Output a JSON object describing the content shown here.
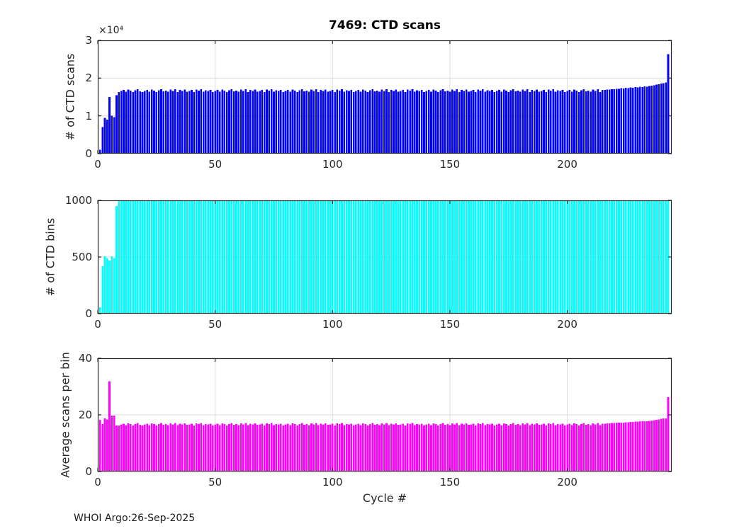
{
  "figure": {
    "title": "7469: CTD scans",
    "xlabel": "Cycle #",
    "footer": "WHOI Argo:26-Sep-2025",
    "background_color": "#ffffff",
    "axis_color": "#262626",
    "grid_color": "#dcdcdc"
  },
  "chart_data": [
    {
      "type": "bar",
      "title": "7469: CTD scans",
      "ylabel": "# of CTD scans",
      "y_exponent": "×10⁴",
      "bar_color": "#0000ff",
      "grid": "on",
      "xlim": [
        0,
        244.5
      ],
      "ylim": [
        0,
        30000
      ],
      "ytick_values": [
        0,
        10000,
        20000,
        30000
      ],
      "ytick_labels": [
        "0",
        "1",
        "2",
        "3"
      ],
      "xtick_values": [
        0,
        50,
        100,
        150,
        200
      ],
      "xtick_labels": [
        "0",
        "50",
        "100",
        "150",
        "200"
      ],
      "x_first_cycle": 1,
      "values": [
        1000,
        7000,
        9500,
        9000,
        15000,
        10000,
        9700,
        15500,
        16300,
        16600,
        16900,
        16400,
        17000,
        16700,
        16300,
        16800,
        17100,
        16500,
        16300,
        16600,
        16900,
        16400,
        17000,
        16700,
        16300,
        16800,
        17100,
        16500,
        16700,
        16400,
        16950,
        16600,
        17050,
        16350,
        16850,
        16600,
        17000,
        16450,
        16550,
        16850,
        16300,
        16950,
        16650,
        17100,
        16400,
        16800,
        16550,
        16900,
        16300,
        16600,
        16900,
        16400,
        17000,
        16700,
        16300,
        16800,
        17100,
        16500,
        16700,
        16400,
        16950,
        16600,
        17050,
        16350,
        16850,
        16600,
        17000,
        16450,
        16550,
        16850,
        16300,
        16950,
        16650,
        17100,
        16400,
        16800,
        16550,
        16900,
        16300,
        16600,
        16900,
        16400,
        17000,
        16700,
        16300,
        16800,
        17100,
        16500,
        16700,
        16400,
        16950,
        16600,
        17050,
        16350,
        16850,
        16600,
        17000,
        16450,
        16550,
        16850,
        16300,
        16950,
        16650,
        17100,
        16400,
        16800,
        16550,
        16900,
        16300,
        16600,
        16900,
        16400,
        17000,
        16700,
        16300,
        16800,
        17100,
        16500,
        16700,
        16400,
        16950,
        16600,
        17050,
        16350,
        16850,
        16600,
        17000,
        16450,
        16550,
        16850,
        16300,
        16950,
        16650,
        17100,
        16400,
        16800,
        16550,
        16900,
        16300,
        16600,
        16900,
        16400,
        17000,
        16700,
        16300,
        16800,
        17100,
        16500,
        16700,
        16400,
        16950,
        16600,
        17050,
        16350,
        16850,
        16600,
        17000,
        16450,
        16550,
        16850,
        16300,
        16950,
        16650,
        17100,
        16400,
        16800,
        16550,
        16900,
        16300,
        16600,
        16900,
        16400,
        17000,
        16700,
        16300,
        16800,
        17100,
        16500,
        16700,
        16400,
        16950,
        16600,
        17050,
        16350,
        16850,
        16600,
        17000,
        16450,
        16550,
        16850,
        16300,
        16950,
        16650,
        17100,
        16400,
        16800,
        16550,
        16900,
        16300,
        16600,
        16900,
        16400,
        17000,
        16700,
        16300,
        16800,
        17100,
        16500,
        16700,
        16400,
        16950,
        16600,
        17050,
        16350,
        16850,
        16900,
        17000,
        16950,
        17100,
        17050,
        17200,
        17150,
        17300,
        17250,
        17400,
        17350,
        17500,
        17450,
        17600,
        17550,
        17700,
        17650,
        17800,
        17750,
        17900,
        18000,
        18100,
        18250,
        18400,
        18550,
        18700,
        18800,
        26300
      ]
    },
    {
      "type": "bar",
      "ylabel": "# of CTD bins",
      "bar_color": "#00ffff",
      "grid": "on",
      "xlim": [
        0,
        244.5
      ],
      "ylim": [
        0,
        1000
      ],
      "ytick_values": [
        0,
        500,
        1000
      ],
      "ytick_labels": [
        "0",
        "500",
        "1000"
      ],
      "xtick_values": [
        0,
        50,
        100,
        150,
        200
      ],
      "xtick_labels": [
        "0",
        "50",
        "100",
        "150",
        "200"
      ],
      "x_first_cycle": 1,
      "values": [
        55,
        420,
        505,
        490,
        470,
        505,
        490,
        950,
        1000,
        1000,
        1000,
        1000,
        1000,
        1000,
        1000,
        1000,
        1000,
        1000,
        1000,
        1000,
        1000,
        1000,
        1000,
        1000,
        1000,
        1000,
        1000,
        1000,
        1000,
        1000,
        1000,
        1000,
        1000,
        1000,
        1000,
        1000,
        1000,
        1000,
        1000,
        1000,
        1000,
        1000,
        1000,
        1000,
        1000,
        1000,
        1000,
        1000,
        1000,
        1000,
        1000,
        1000,
        1000,
        1000,
        1000,
        1000,
        1000,
        1000,
        1000,
        1000,
        1000,
        1000,
        1000,
        1000,
        1000,
        1000,
        1000,
        1000,
        1000,
        1000,
        1000,
        1000,
        1000,
        1000,
        1000,
        1000,
        1000,
        1000,
        1000,
        1000,
        1000,
        1000,
        1000,
        1000,
        1000,
        1000,
        1000,
        1000,
        1000,
        1000,
        1000,
        1000,
        1000,
        1000,
        1000,
        1000,
        1000,
        1000,
        1000,
        1000,
        1000,
        1000,
        1000,
        1000,
        1000,
        1000,
        1000,
        1000,
        1000,
        1000,
        1000,
        1000,
        1000,
        1000,
        1000,
        1000,
        1000,
        1000,
        1000,
        1000,
        1000,
        1000,
        1000,
        1000,
        1000,
        1000,
        1000,
        1000,
        1000,
        1000,
        1000,
        1000,
        1000,
        1000,
        1000,
        1000,
        1000,
        1000,
        1000,
        1000,
        1000,
        1000,
        1000,
        1000,
        1000,
        1000,
        1000,
        1000,
        1000,
        1000,
        1000,
        1000,
        1000,
        1000,
        1000,
        1000,
        1000,
        1000,
        1000,
        1000,
        1000,
        1000,
        1000,
        1000,
        1000,
        1000,
        1000,
        1000,
        1000,
        1000,
        1000,
        1000,
        1000,
        1000,
        1000,
        1000,
        1000,
        1000,
        1000,
        1000,
        1000,
        1000,
        1000,
        1000,
        1000,
        1000,
        1000,
        1000,
        1000,
        1000,
        1000,
        1000,
        1000,
        1000,
        1000,
        1000,
        1000,
        1000,
        1000,
        1000,
        1000,
        1000,
        1000,
        1000,
        1000,
        1000,
        1000,
        1000,
        1000,
        1000,
        1000,
        1000,
        1000,
        1000,
        1000,
        1000,
        1000,
        1000,
        1000,
        1000,
        1000,
        1000,
        1000,
        1000,
        1000,
        1000,
        1000,
        1000,
        1000,
        1000,
        1000,
        1000,
        1000,
        1000,
        1000,
        1000,
        1000,
        1000,
        1000,
        1000,
        1000,
        1000,
        1000
      ]
    },
    {
      "type": "bar",
      "ylabel": "Average scans per bin",
      "xlabel": "Cycle #",
      "bar_color": "#ff00ff",
      "grid": "on",
      "xlim": [
        0,
        244.5
      ],
      "ylim": [
        0,
        40
      ],
      "ytick_values": [
        0,
        20,
        40
      ],
      "ytick_labels": [
        "0",
        "20",
        "40"
      ],
      "xtick_values": [
        0,
        50,
        100,
        150,
        200
      ],
      "xtick_labels": [
        "0",
        "50",
        "100",
        "150",
        "200"
      ],
      "x_first_cycle": 1,
      "values": [
        18.2,
        16.7,
        18.8,
        18.4,
        31.9,
        19.8,
        19.8,
        16.3,
        16.3,
        16.6,
        16.9,
        16.4,
        17.0,
        16.7,
        16.3,
        16.8,
        17.1,
        16.5,
        16.3,
        16.6,
        16.9,
        16.4,
        17.0,
        16.7,
        16.3,
        16.8,
        17.1,
        16.5,
        16.7,
        16.4,
        17.0,
        16.6,
        17.1,
        16.4,
        16.9,
        16.6,
        17.0,
        16.5,
        16.6,
        16.9,
        16.3,
        17.0,
        16.7,
        17.1,
        16.4,
        16.8,
        16.6,
        16.9,
        16.3,
        16.6,
        16.9,
        16.4,
        17.0,
        16.7,
        16.3,
        16.8,
        17.1,
        16.5,
        16.7,
        16.4,
        17.0,
        16.6,
        17.1,
        16.4,
        16.9,
        16.6,
        17.0,
        16.5,
        16.6,
        16.9,
        16.3,
        17.0,
        16.7,
        17.1,
        16.4,
        16.8,
        16.6,
        16.9,
        16.3,
        16.6,
        16.9,
        16.4,
        17.0,
        16.7,
        16.3,
        16.8,
        17.1,
        16.5,
        16.7,
        16.4,
        17.0,
        16.6,
        17.1,
        16.4,
        16.9,
        16.6,
        17.0,
        16.5,
        16.6,
        16.9,
        16.3,
        17.0,
        16.7,
        17.1,
        16.4,
        16.8,
        16.6,
        16.9,
        16.3,
        16.6,
        16.9,
        16.4,
        17.0,
        16.7,
        16.3,
        16.8,
        17.1,
        16.5,
        16.7,
        16.4,
        17.0,
        16.6,
        17.1,
        16.4,
        16.9,
        16.6,
        17.0,
        16.5,
        16.6,
        16.9,
        16.3,
        17.0,
        16.7,
        17.1,
        16.4,
        16.8,
        16.6,
        16.9,
        16.3,
        16.6,
        16.9,
        16.4,
        17.0,
        16.7,
        16.3,
        16.8,
        17.1,
        16.5,
        16.7,
        16.4,
        17.0,
        16.6,
        17.1,
        16.4,
        16.9,
        16.6,
        17.0,
        16.5,
        16.6,
        16.9,
        16.3,
        17.0,
        16.7,
        17.1,
        16.4,
        16.8,
        16.6,
        16.9,
        16.3,
        16.6,
        16.9,
        16.4,
        17.0,
        16.7,
        16.3,
        16.8,
        17.1,
        16.5,
        16.7,
        16.4,
        17.0,
        16.6,
        17.1,
        16.4,
        16.9,
        16.6,
        17.0,
        16.5,
        16.6,
        16.9,
        16.3,
        17.0,
        16.7,
        17.1,
        16.4,
        16.8,
        16.6,
        16.9,
        16.3,
        16.6,
        16.9,
        16.4,
        17.0,
        16.7,
        16.3,
        16.8,
        17.1,
        16.5,
        16.7,
        16.4,
        17.0,
        16.6,
        17.1,
        16.4,
        16.9,
        16.9,
        17.0,
        17.0,
        17.1,
        17.1,
        17.2,
        17.2,
        17.3,
        17.3,
        17.4,
        17.4,
        17.5,
        17.5,
        17.6,
        17.6,
        17.7,
        17.7,
        17.8,
        17.8,
        17.9,
        18.0,
        18.1,
        18.3,
        18.4,
        18.6,
        18.7,
        18.8,
        26.3
      ]
    }
  ]
}
